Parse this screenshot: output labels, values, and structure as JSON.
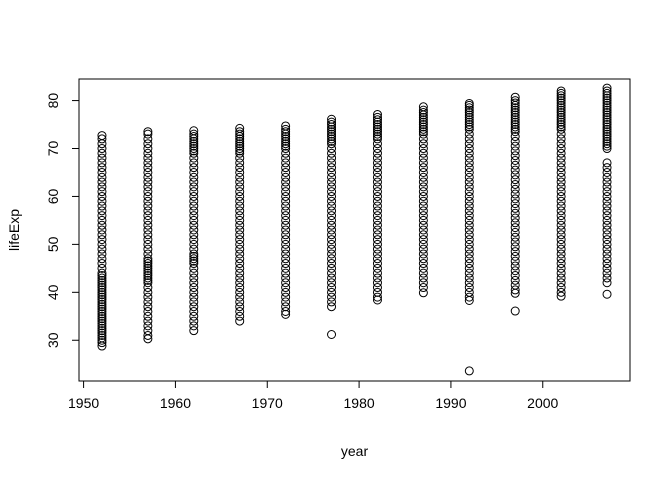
{
  "chart_data": {
    "type": "scatter",
    "title": "",
    "xlabel": "year",
    "ylabel": "lifeExp",
    "xlim": [
      1949.5,
      2009.5
    ],
    "ylim": [
      21.5,
      84.5
    ],
    "xticks": [
      1950,
      1960,
      1970,
      1980,
      1990,
      2000
    ],
    "yticks": [
      30,
      40,
      50,
      60,
      70,
      80
    ],
    "grid": false,
    "legend": "none",
    "marker": "open-circle",
    "colors": {
      "points": "#000000",
      "axes": "#000000",
      "background": "#ffffff"
    },
    "series": [
      {
        "x": 1952,
        "min": 28.8,
        "max": 72.7,
        "outliers": [],
        "values": [
          28.8,
          29.5,
          30.0,
          30.5,
          31.0,
          31.5,
          32.0,
          32.5,
          33.0,
          33.5,
          34.0,
          34.5,
          35.0,
          35.5,
          36.0,
          36.5,
          37.0,
          37.5,
          38.0,
          38.5,
          39.0,
          39.5,
          40.0,
          40.5,
          41.0,
          41.5,
          42.0,
          42.5,
          43.0,
          43.5,
          44.0,
          45.0,
          46.0,
          47.0,
          48.0,
          49.0,
          50.0,
          51.0,
          52.0,
          53.0,
          54.0,
          55.0,
          56.0,
          57.0,
          58.0,
          59.0,
          60.0,
          61.0,
          62.0,
          63.0,
          64.0,
          65.0,
          66.0,
          67.0,
          68.0,
          69.0,
          70.0,
          71.0,
          72.0,
          72.7
        ]
      },
      {
        "x": 1957,
        "min": 30.3,
        "max": 73.5,
        "outliers": [],
        "values": [
          30.3,
          31.0,
          32.0,
          33.0,
          34.0,
          35.0,
          36.0,
          37.0,
          38.0,
          39.0,
          40.0,
          41.0,
          42.0,
          42.5,
          43.0,
          43.5,
          44.0,
          44.5,
          45.0,
          45.5,
          46.0,
          46.5,
          47.0,
          48.0,
          49.0,
          50.0,
          51.0,
          52.0,
          53.0,
          54.0,
          55.0,
          56.0,
          57.0,
          58.0,
          59.0,
          60.0,
          61.0,
          62.0,
          63.0,
          64.0,
          65.0,
          66.0,
          67.0,
          68.0,
          69.0,
          70.0,
          71.0,
          72.0,
          73.0,
          73.5
        ]
      },
      {
        "x": 1962,
        "min": 32.0,
        "max": 73.7,
        "outliers": [],
        "values": [
          32.0,
          33.0,
          34.0,
          35.0,
          36.0,
          37.0,
          38.0,
          39.0,
          40.0,
          41.0,
          42.0,
          43.0,
          44.0,
          45.0,
          46.0,
          46.5,
          47.0,
          47.5,
          48.0,
          49.0,
          50.0,
          51.0,
          52.0,
          53.0,
          54.0,
          55.0,
          56.0,
          57.0,
          58.0,
          59.0,
          60.0,
          61.0,
          62.0,
          63.0,
          64.0,
          65.0,
          66.0,
          67.0,
          68.0,
          69.0,
          69.5,
          70.0,
          70.5,
          71.0,
          71.5,
          72.0,
          72.5,
          73.0,
          73.7
        ]
      },
      {
        "x": 1967,
        "min": 34.0,
        "max": 74.2,
        "outliers": [],
        "values": [
          34.0,
          35.0,
          36.0,
          37.0,
          38.0,
          39.0,
          40.0,
          41.0,
          42.0,
          43.0,
          44.0,
          45.0,
          46.0,
          47.0,
          48.0,
          49.0,
          50.0,
          51.0,
          52.0,
          53.0,
          54.0,
          55.0,
          56.0,
          57.0,
          58.0,
          59.0,
          60.0,
          61.0,
          62.0,
          63.0,
          64.0,
          65.0,
          66.0,
          67.0,
          68.0,
          69.0,
          69.5,
          70.0,
          70.5,
          71.0,
          71.5,
          72.0,
          72.5,
          73.0,
          73.5,
          74.2
        ]
      },
      {
        "x": 1972,
        "min": 35.4,
        "max": 74.7,
        "outliers": [],
        "values": [
          35.4,
          36.0,
          37.0,
          38.0,
          39.0,
          40.0,
          41.0,
          42.0,
          43.0,
          44.0,
          45.0,
          46.0,
          47.0,
          48.0,
          49.0,
          50.0,
          51.0,
          52.0,
          53.0,
          54.0,
          55.0,
          56.0,
          57.0,
          58.0,
          59.0,
          60.0,
          61.0,
          62.0,
          63.0,
          64.0,
          65.0,
          66.0,
          67.0,
          68.0,
          69.0,
          70.0,
          70.5,
          71.0,
          71.5,
          72.0,
          72.5,
          73.0,
          73.5,
          74.0,
          74.7
        ]
      },
      {
        "x": 1977,
        "min": 31.2,
        "max": 76.1,
        "outliers": [
          31.2
        ],
        "values": [
          37.0,
          38.0,
          39.0,
          40.0,
          41.0,
          42.0,
          43.0,
          44.0,
          45.0,
          46.0,
          47.0,
          48.0,
          49.0,
          50.0,
          51.0,
          52.0,
          53.0,
          54.0,
          55.0,
          56.0,
          57.0,
          58.0,
          59.0,
          60.0,
          61.0,
          62.0,
          63.0,
          64.0,
          65.0,
          66.0,
          67.0,
          68.0,
          69.0,
          70.0,
          71.0,
          71.5,
          72.0,
          72.5,
          73.0,
          73.5,
          74.0,
          74.5,
          75.0,
          75.5,
          76.1
        ]
      },
      {
        "x": 1982,
        "min": 38.4,
        "max": 77.1,
        "outliers": [],
        "values": [
          38.4,
          39.0,
          40.0,
          41.0,
          42.0,
          43.0,
          44.0,
          45.0,
          46.0,
          47.0,
          48.0,
          49.0,
          50.0,
          51.0,
          52.0,
          53.0,
          54.0,
          55.0,
          56.0,
          57.0,
          58.0,
          59.0,
          60.0,
          61.0,
          62.0,
          63.0,
          64.0,
          65.0,
          66.0,
          67.0,
          68.0,
          69.0,
          70.0,
          71.0,
          72.0,
          72.5,
          73.0,
          73.5,
          74.0,
          74.5,
          75.0,
          75.5,
          76.0,
          76.5,
          77.1
        ]
      },
      {
        "x": 1987,
        "min": 39.9,
        "max": 78.7,
        "outliers": [],
        "values": [
          39.9,
          41.0,
          42.0,
          43.0,
          44.0,
          45.0,
          46.0,
          47.0,
          48.0,
          49.0,
          50.0,
          51.0,
          52.0,
          53.0,
          54.0,
          55.0,
          56.0,
          57.0,
          58.0,
          59.0,
          60.0,
          61.0,
          62.0,
          63.0,
          64.0,
          65.0,
          66.0,
          67.0,
          68.0,
          69.0,
          70.0,
          71.0,
          72.0,
          73.0,
          73.5,
          74.0,
          74.5,
          75.0,
          75.5,
          76.0,
          76.5,
          77.0,
          77.5,
          78.0,
          78.7
        ]
      },
      {
        "x": 1992,
        "min": 23.6,
        "max": 79.4,
        "outliers": [
          23.6
        ],
        "values": [
          38.3,
          39.0,
          40.0,
          41.0,
          42.0,
          43.0,
          44.0,
          45.0,
          46.0,
          47.0,
          48.0,
          49.0,
          50.0,
          51.0,
          52.0,
          53.0,
          54.0,
          55.0,
          56.0,
          57.0,
          58.0,
          59.0,
          60.0,
          61.0,
          62.0,
          63.0,
          64.0,
          65.0,
          66.0,
          67.0,
          68.0,
          69.0,
          70.0,
          71.0,
          72.0,
          73.0,
          74.0,
          74.5,
          75.0,
          75.5,
          76.0,
          76.5,
          77.0,
          77.5,
          78.0,
          78.5,
          79.0,
          79.4
        ]
      },
      {
        "x": 1997,
        "min": 36.1,
        "max": 80.7,
        "outliers": [
          36.1
        ],
        "values": [
          39.8,
          40.5,
          41.5,
          42.5,
          43.5,
          44.5,
          45.5,
          46.5,
          47.5,
          48.5,
          49.5,
          50.5,
          51.5,
          52.5,
          53.5,
          54.5,
          55.5,
          56.5,
          57.5,
          58.5,
          59.5,
          60.5,
          61.5,
          62.5,
          63.5,
          64.5,
          65.5,
          66.5,
          67.5,
          68.5,
          69.5,
          70.5,
          71.5,
          72.5,
          73.5,
          74.0,
          74.5,
          75.0,
          75.5,
          76.0,
          76.5,
          77.0,
          77.5,
          78.0,
          78.5,
          79.0,
          79.5,
          80.0,
          80.7
        ]
      },
      {
        "x": 2002,
        "min": 39.2,
        "max": 82.0,
        "outliers": [],
        "values": [
          39.2,
          40.0,
          41.0,
          42.0,
          43.0,
          44.0,
          45.0,
          46.0,
          47.0,
          48.0,
          49.0,
          50.0,
          51.0,
          52.0,
          53.0,
          54.0,
          55.0,
          56.0,
          57.0,
          58.0,
          59.0,
          60.0,
          61.0,
          62.0,
          63.0,
          64.0,
          65.0,
          66.0,
          67.0,
          68.0,
          69.0,
          70.0,
          71.0,
          72.0,
          73.0,
          74.0,
          74.5,
          75.0,
          75.5,
          76.0,
          76.5,
          77.0,
          77.5,
          78.0,
          78.5,
          79.0,
          79.5,
          80.0,
          80.5,
          81.0,
          81.5,
          82.0
        ]
      },
      {
        "x": 2007,
        "min": 39.6,
        "max": 82.6,
        "outliers": [],
        "values": [
          39.6,
          42.0,
          43.0,
          44.0,
          45.0,
          46.0,
          47.0,
          48.0,
          49.0,
          50.0,
          51.0,
          52.0,
          53.0,
          54.0,
          55.0,
          56.0,
          57.0,
          58.0,
          59.0,
          60.0,
          61.0,
          62.0,
          63.0,
          64.0,
          65.0,
          66.0,
          67.0,
          70.0,
          70.5,
          71.0,
          71.5,
          72.0,
          72.5,
          73.0,
          73.5,
          74.0,
          74.5,
          75.0,
          75.5,
          76.0,
          76.5,
          77.0,
          77.5,
          78.0,
          78.5,
          79.0,
          79.5,
          80.0,
          80.5,
          81.0,
          81.5,
          82.0,
          82.6
        ]
      }
    ]
  }
}
